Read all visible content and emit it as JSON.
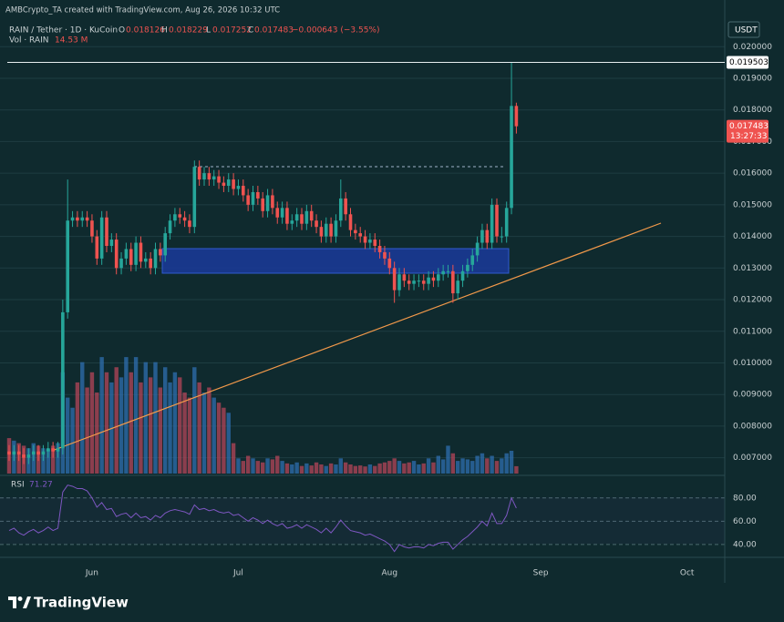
{
  "chart_data": {
    "type": "candlestick",
    "title": "AMBCrypto_TA created with TradingView.com, Aug 26, 2026 10:32 UTC",
    "symbol": "RAIN / Tether · 1D · KuCoin",
    "ohlc_letters": [
      "O",
      "H",
      "L",
      "C"
    ],
    "change": "−0.000643 (−3.55%)",
    "volume_name": "Vol · RAIN",
    "volume_label": "14.53 M",
    "currency": "USDT",
    "countdown": "13:27:33",
    "rsi_name": "RSI",
    "logo": "TradingView",
    "up_color": "#26a69a",
    "down_color": "#ef5350",
    "volume_up_color": "#2f6fb0",
    "volume_down_color": "#b5455a",
    "rsi_color": "#7e57c2",
    "categories": [
      null,
      null,
      null,
      null,
      null,
      null,
      null,
      null,
      null,
      null,
      null,
      null,
      null,
      null,
      null,
      null,
      null,
      "Jun",
      null,
      null,
      null,
      null,
      null,
      null,
      null,
      null,
      null,
      null,
      null,
      null,
      null,
      null,
      null,
      null,
      null,
      null,
      null,
      null,
      null,
      null,
      null,
      null,
      null,
      null,
      null,
      null,
      null,
      "Jul",
      null,
      null,
      null,
      null,
      null,
      null,
      null,
      null,
      null,
      null,
      null,
      null,
      null,
      null,
      null,
      null,
      null,
      null,
      null,
      null,
      null,
      null,
      null,
      null,
      null,
      null,
      null,
      null,
      null,
      null,
      "Aug",
      null,
      null,
      null,
      null,
      null,
      null,
      null,
      null,
      null,
      null,
      null,
      null,
      null,
      null,
      null,
      null,
      null,
      null,
      null,
      null,
      null,
      null,
      null,
      null,
      null,
      null,
      null,
      null,
      null,
      null,
      "Sep",
      null,
      null,
      null,
      null,
      null,
      null,
      null,
      null,
      null,
      null,
      null,
      null,
      null,
      null,
      null,
      null,
      null,
      null,
      null,
      null,
      null,
      null,
      null,
      null,
      null,
      null,
      null,
      null,
      null,
      "Oct",
      null,
      null,
      null,
      null,
      null,
      null,
      null,
      null
    ],
    "open": [
      0.0072,
      0.0071,
      0.0072,
      0.0071,
      0.007,
      0.0071,
      0.0072,
      0.0071,
      0.0072,
      0.0073,
      0.0072,
      0.0073,
      0.0116,
      0.0145,
      0.0146,
      0.0145,
      0.0146,
      0.0145,
      0.014,
      0.0133,
      0.0146,
      0.0137,
      0.0139,
      0.013,
      0.0133,
      0.0136,
      0.0131,
      0.0138,
      0.0132,
      0.0133,
      0.013,
      0.0136,
      0.0134,
      0.0141,
      0.0145,
      0.0147,
      0.0146,
      0.0145,
      0.0143,
      0.0162,
      0.0158,
      0.016,
      0.0158,
      0.0159,
      0.0157,
      0.0156,
      0.0158,
      0.0155,
      0.0156,
      0.0153,
      0.015,
      0.0154,
      0.0152,
      0.0148,
      0.0153,
      0.0149,
      0.0146,
      0.0149,
      0.0144,
      0.0145,
      0.0147,
      0.0144,
      0.0148,
      0.0145,
      0.0143,
      0.014,
      0.0144,
      0.014,
      0.0145,
      0.0152,
      0.0147,
      0.0142,
      0.0141,
      0.014,
      0.0138,
      0.0139,
      0.0137,
      0.0135,
      0.0133,
      0.013,
      0.0123,
      0.0128,
      0.0126,
      0.0125,
      0.0126,
      0.0126,
      0.0125,
      0.0127,
      0.0126,
      0.0128,
      0.0129,
      0.0129,
      0.0122,
      0.0126,
      0.0129,
      0.0131,
      0.0134,
      0.0138,
      0.0142,
      0.0138,
      0.015,
      0.014,
      0.014,
      0.0149,
      0.018126,
      null,
      null,
      null,
      null,
      null,
      null,
      null,
      null,
      null,
      null,
      null,
      null,
      null,
      null,
      null,
      null,
      null,
      null,
      null,
      null,
      null,
      null,
      null,
      null,
      null,
      null,
      null,
      null,
      null,
      null,
      null,
      null,
      null,
      null,
      null,
      null,
      null,
      null,
      null,
      null,
      null,
      null,
      null
    ],
    "high": [
      0.0074,
      0.0074,
      0.0074,
      0.0073,
      0.0073,
      0.0074,
      0.0074,
      0.0074,
      0.0075,
      0.0075,
      0.0075,
      0.012,
      0.0158,
      0.0148,
      0.0148,
      0.0148,
      0.0148,
      0.0147,
      0.0142,
      0.0148,
      0.0148,
      0.0141,
      0.0141,
      0.0135,
      0.0138,
      0.0138,
      0.014,
      0.014,
      0.0135,
      0.0135,
      0.0138,
      0.0138,
      0.0143,
      0.0147,
      0.0149,
      0.0149,
      0.0148,
      0.0147,
      0.0164,
      0.0164,
      0.0162,
      0.0162,
      0.0161,
      0.0161,
      0.0159,
      0.016,
      0.016,
      0.0158,
      0.0158,
      0.0155,
      0.0156,
      0.0156,
      0.0154,
      0.0155,
      0.0155,
      0.0151,
      0.0151,
      0.0151,
      0.0147,
      0.0149,
      0.0149,
      0.015,
      0.015,
      0.0147,
      0.0145,
      0.0146,
      0.0146,
      0.0147,
      0.0158,
      0.0154,
      0.0149,
      0.0144,
      0.0143,
      0.0142,
      0.0141,
      0.0141,
      0.0139,
      0.0137,
      0.0135,
      0.0132,
      0.013,
      0.013,
      0.0128,
      0.0128,
      0.0128,
      0.0128,
      0.0129,
      0.0129,
      0.013,
      0.0131,
      0.0131,
      0.0131,
      0.0128,
      0.0131,
      0.0133,
      0.0136,
      0.014,
      0.0144,
      0.0144,
      0.0152,
      0.0152,
      0.0143,
      0.0151,
      0.019503,
      0.018229,
      null,
      null,
      null,
      null,
      null,
      null,
      null,
      null,
      null,
      null,
      null,
      null,
      null,
      null,
      null,
      null,
      null,
      null,
      null,
      null,
      null,
      null,
      null,
      null,
      null,
      null,
      null,
      null,
      null,
      null,
      null,
      null,
      null,
      null,
      null,
      null,
      null,
      null,
      null,
      null,
      null,
      null,
      null
    ],
    "low": [
      0.0069,
      0.0069,
      0.0069,
      0.0068,
      0.0068,
      0.0069,
      0.0069,
      0.0069,
      0.007,
      0.007,
      0.007,
      0.0071,
      0.0114,
      0.0143,
      0.0143,
      0.0143,
      0.0143,
      0.0138,
      0.0131,
      0.0131,
      0.0135,
      0.0135,
      0.0128,
      0.0128,
      0.0131,
      0.0129,
      0.0129,
      0.013,
      0.013,
      0.0128,
      0.0128,
      0.0132,
      0.0132,
      0.0139,
      0.0143,
      0.0144,
      0.0143,
      0.0141,
      0.0141,
      0.0156,
      0.0156,
      0.0156,
      0.0156,
      0.0155,
      0.0154,
      0.0154,
      0.0153,
      0.0153,
      0.0151,
      0.0148,
      0.0148,
      0.015,
      0.0146,
      0.0146,
      0.0147,
      0.0144,
      0.0144,
      0.0142,
      0.0142,
      0.0143,
      0.0142,
      0.0142,
      0.0143,
      0.0141,
      0.0138,
      0.0138,
      0.0138,
      0.0138,
      0.0143,
      0.0145,
      0.014,
      0.0139,
      0.0138,
      0.0136,
      0.0136,
      0.0135,
      0.0133,
      0.0131,
      0.0128,
      0.0119,
      0.0121,
      0.0124,
      0.0123,
      0.0123,
      0.0124,
      0.0123,
      0.0123,
      0.0124,
      0.0124,
      0.0126,
      0.0127,
      0.0119,
      0.012,
      0.0124,
      0.0127,
      0.0129,
      0.0132,
      0.0136,
      0.0136,
      0.0136,
      0.0138,
      0.0138,
      0.0138,
      0.0147,
      0.017252,
      null,
      null,
      null,
      null,
      null,
      null,
      null,
      null,
      null,
      null,
      null,
      null,
      null,
      null,
      null,
      null,
      null,
      null,
      null,
      null,
      null,
      null,
      null,
      null,
      null,
      null,
      null,
      null,
      null,
      null,
      null,
      null,
      null,
      null,
      null,
      null,
      null,
      null,
      null,
      null,
      null,
      null,
      null
    ],
    "close": [
      0.0071,
      0.0072,
      0.0071,
      0.007,
      0.0071,
      0.0072,
      0.0071,
      0.0072,
      0.0073,
      0.0072,
      0.0073,
      0.0116,
      0.0145,
      0.0146,
      0.0145,
      0.0146,
      0.0145,
      0.014,
      0.0133,
      0.0146,
      0.0137,
      0.0139,
      0.013,
      0.0133,
      0.0136,
      0.0131,
      0.0138,
      0.0132,
      0.0133,
      0.013,
      0.0136,
      0.0134,
      0.0141,
      0.0145,
      0.0147,
      0.0146,
      0.0145,
      0.0143,
      0.0162,
      0.0158,
      0.016,
      0.0158,
      0.0159,
      0.0157,
      0.0156,
      0.0158,
      0.0155,
      0.0156,
      0.0153,
      0.015,
      0.0154,
      0.0152,
      0.0148,
      0.0153,
      0.0149,
      0.0146,
      0.0149,
      0.0144,
      0.0145,
      0.0147,
      0.0144,
      0.0148,
      0.0145,
      0.0143,
      0.014,
      0.0144,
      0.014,
      0.0145,
      0.0152,
      0.0147,
      0.0142,
      0.0141,
      0.014,
      0.0138,
      0.0139,
      0.0137,
      0.0135,
      0.0133,
      0.013,
      0.0123,
      0.0128,
      0.0126,
      0.0125,
      0.0126,
      0.0126,
      0.0125,
      0.0127,
      0.0126,
      0.0128,
      0.0129,
      0.0129,
      0.0122,
      0.0126,
      0.0129,
      0.0131,
      0.0134,
      0.0138,
      0.0142,
      0.0138,
      0.015,
      0.014,
      0.014,
      0.0149,
      0.018126,
      0.017483,
      null,
      null,
      null,
      null,
      null,
      null,
      null,
      null,
      null,
      null,
      null,
      null,
      null,
      null,
      null,
      null,
      null,
      null,
      null,
      null,
      null,
      null,
      null,
      null,
      null,
      null,
      null,
      null,
      null,
      null,
      null,
      null,
      null,
      null,
      null,
      null,
      null,
      null,
      null,
      null,
      null,
      null,
      null
    ],
    "volume": [
      70,
      65,
      60,
      55,
      50,
      60,
      55,
      50,
      48,
      55,
      60,
      200,
      150,
      130,
      180,
      220,
      170,
      200,
      160,
      230,
      200,
      180,
      210,
      190,
      230,
      200,
      230,
      180,
      220,
      190,
      220,
      170,
      210,
      180,
      200,
      190,
      160,
      150,
      210,
      180,
      160,
      170,
      150,
      140,
      130,
      120,
      60,
      30,
      25,
      35,
      30,
      25,
      22,
      30,
      28,
      35,
      25,
      20,
      18,
      22,
      15,
      20,
      16,
      22,
      18,
      15,
      20,
      18,
      30,
      22,
      18,
      15,
      16,
      14,
      18,
      15,
      20,
      22,
      25,
      30,
      25,
      20,
      22,
      25,
      18,
      20,
      30,
      22,
      35,
      28,
      55,
      40,
      25,
      30,
      28,
      25,
      35,
      40,
      30,
      35,
      25,
      30,
      40,
      45,
      14.53,
      null,
      null,
      null,
      null,
      null,
      null,
      null,
      null,
      null,
      null,
      null,
      null,
      null,
      null,
      null,
      null,
      null,
      null,
      null,
      null,
      null,
      null,
      null,
      null,
      null,
      null,
      null,
      null,
      null,
      null,
      null,
      null,
      null,
      null,
      null,
      null,
      null,
      null,
      null,
      null,
      null,
      null,
      null
    ],
    "rsi": [
      52,
      54,
      50,
      48,
      51,
      53,
      50,
      52,
      55,
      52,
      54,
      85,
      91,
      90,
      88,
      88,
      86,
      80,
      72,
      76,
      70,
      71,
      64,
      66,
      67,
      63,
      67,
      63,
      64,
      61,
      65,
      63,
      67,
      69,
      70,
      69,
      68,
      66,
      74,
      70,
      71,
      69,
      70,
      68,
      67,
      68,
      65,
      66,
      63,
      60,
      63,
      61,
      58,
      61,
      58,
      56,
      58,
      54,
      55,
      57,
      54,
      57,
      55,
      53,
      50,
      54,
      50,
      55,
      61,
      56,
      52,
      51,
      50,
      48,
      49,
      47,
      45,
      43,
      40,
      34,
      40,
      38,
      37,
      38,
      38,
      37,
      40,
      39,
      41,
      42,
      42,
      36,
      40,
      44,
      47,
      51,
      55,
      60,
      56,
      67,
      58,
      58,
      65,
      80,
      71.27,
      null,
      null,
      null,
      null,
      null,
      null,
      null,
      null,
      null,
      null,
      null,
      null,
      null,
      null,
      null,
      null,
      null,
      null,
      null,
      null,
      null,
      null,
      null,
      null,
      null,
      null,
      null,
      null,
      null,
      null,
      null,
      null,
      null,
      null,
      null,
      null,
      null,
      null,
      null,
      null,
      null,
      null,
      null
    ],
    "ylim": [
      0.0065,
      0.0209
    ],
    "yticks": [
      {
        "value": 0.02,
        "label": "0.020000"
      },
      {
        "value": 0.019,
        "label": "0.019000"
      },
      {
        "value": 0.018,
        "label": "0.018000"
      },
      {
        "value": 0.017,
        "label": "0.017000"
      },
      {
        "value": 0.016,
        "label": "0.016000"
      },
      {
        "value": 0.015,
        "label": "0.015000"
      },
      {
        "value": 0.014,
        "label": "0.014000"
      },
      {
        "value": 0.013,
        "label": "0.013000"
      },
      {
        "value": 0.012,
        "label": "0.012000"
      },
      {
        "value": 0.011,
        "label": "0.011000"
      },
      {
        "value": 0.01,
        "label": "0.010000"
      },
      {
        "value": 0.009,
        "label": "0.009000"
      },
      {
        "value": 0.008,
        "label": "0.008000"
      },
      {
        "value": 0.007,
        "label": "0.007000"
      }
    ],
    "rsi_ylim": [
      29,
      97
    ],
    "rsi_yticks": [
      {
        "value": 80,
        "label": "80.00"
      },
      {
        "value": 60,
        "label": "60.00"
      },
      {
        "value": 40,
        "label": "40.00"
      }
    ],
    "grid": true
  }
}
